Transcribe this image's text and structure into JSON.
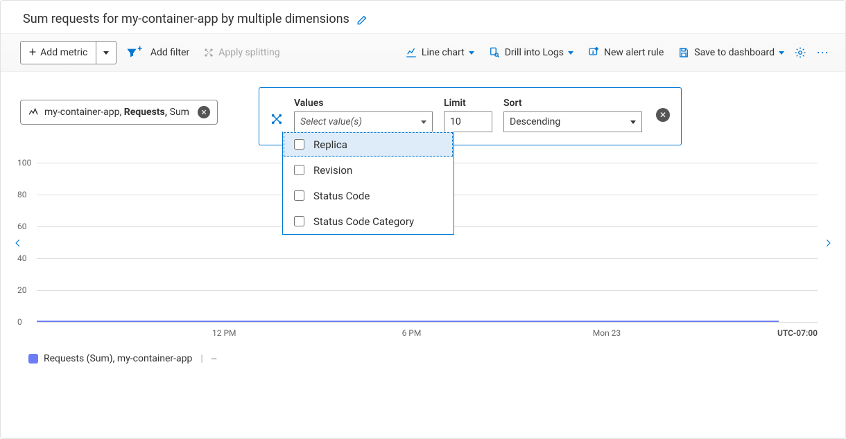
{
  "title": "Sum requests for my-container-app by multiple dimensions",
  "toolbar": {
    "add_metric": "Add metric",
    "add_filter": "Add filter",
    "apply_splitting": "Apply splitting",
    "line_chart": "Line chart",
    "drill_logs": "Drill into Logs",
    "new_alert": "New alert rule",
    "save_dashboard": "Save to dashboard"
  },
  "metric_pill": {
    "resource": "my-container-app, ",
    "metric": "Requests, ",
    "agg": "Sum"
  },
  "split_panel": {
    "values_label": "Values",
    "values_placeholder": "Select value(s)",
    "limit_label": "Limit",
    "limit_value": "10",
    "sort_label": "Sort",
    "sort_value": "Descending"
  },
  "values_options": [
    "Replica",
    "Revision",
    "Status Code",
    "Status Code Category"
  ],
  "chart": {
    "type": "line",
    "ylim": [
      0,
      100
    ],
    "ytick_step": 20,
    "yticks": [
      0,
      20,
      40,
      60,
      80,
      100
    ],
    "xticks": [
      {
        "label": "12 PM",
        "pos_pct": 24
      },
      {
        "label": "6 PM",
        "pos_pct": 48
      },
      {
        "label": "Mon 23",
        "pos_pct": 73
      }
    ],
    "tz": "UTC-07:00",
    "series": [
      {
        "name": "Requests (Sum), my-container-app",
        "color": "#6b7cf5",
        "value_display": "--",
        "flat_value": 0
      }
    ],
    "grid_color": "#dddddd",
    "background": "#ffffff"
  },
  "colors": {
    "accent": "#0078d4",
    "series": "#6b7cf5"
  }
}
